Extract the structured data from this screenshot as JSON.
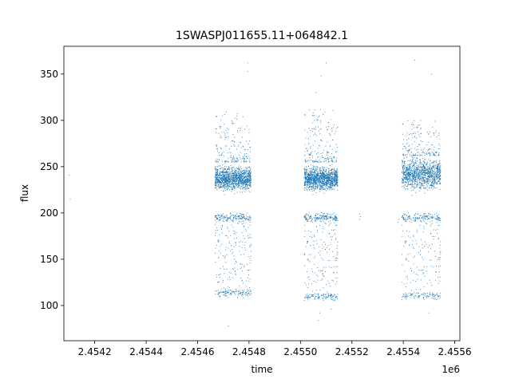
{
  "chart_data": {
    "type": "scatter",
    "title": "1SWASPJ011655.11+064842.1",
    "xlabel": "time",
    "ylabel": "flux",
    "x_offset_label": "1e6",
    "xlim": [
      2454080,
      2455620
    ],
    "ylim": [
      62,
      380
    ],
    "x_ticks": [
      2454200,
      2454400,
      2454600,
      2454800,
      2455000,
      2455200,
      2455400,
      2455600
    ],
    "x_tick_labels": [
      "2.4542",
      "2.4544",
      "2.4546",
      "2.4548",
      "2.4550",
      "2.4552",
      "2.4554",
      "2.4556"
    ],
    "y_ticks": [
      100,
      150,
      200,
      250,
      300,
      350
    ],
    "y_tick_labels": [
      "100",
      "150",
      "200",
      "250",
      "300",
      "350"
    ],
    "grid": false,
    "point_color": "#1f77b4",
    "series": [
      {
        "name": "",
        "clusters": [
          {
            "x_start": 2454668,
            "x_end": 2454808,
            "core": [
              222,
              252
            ],
            "low": [
              108,
              200
            ],
            "high": [
              255,
              310
            ],
            "n": 1900,
            "outliers": [
              [
                2454795,
                362
              ],
              [
                2454795,
                353
              ],
              [
                2454720,
                78
              ],
              [
                2454800,
                290
              ]
            ]
          },
          {
            "x_start": 2455015,
            "x_end": 2455145,
            "core": [
              222,
              252
            ],
            "low": [
              104,
              200
            ],
            "high": [
              255,
              312
            ],
            "n": 2000,
            "outliers": [
              [
                2455100,
                362
              ],
              [
                2455080,
                348
              ],
              [
                2455060,
                330
              ],
              [
                2455070,
                84
              ],
              [
                2455075,
                92
              ],
              [
                2455120,
                96
              ]
            ]
          },
          {
            "x_start": 2455395,
            "x_end": 2455545,
            "core": [
              222,
              262
            ],
            "low": [
              105,
              200
            ],
            "high": [
              262,
              300
            ],
            "n": 1700,
            "outliers": [
              [
                2455445,
                365
              ],
              [
                2455510,
                350
              ],
              [
                2455500,
                92
              ],
              [
                2455540,
                280
              ]
            ]
          }
        ],
        "sparse": [
          [
            2454100,
            241
          ],
          [
            2454105,
            215
          ],
          [
            2455230,
            199
          ],
          [
            2455230,
            193
          ],
          [
            2455233,
            196
          ],
          [
            2455380,
            190
          ],
          [
            2455383,
            193
          ]
        ]
      }
    ]
  }
}
